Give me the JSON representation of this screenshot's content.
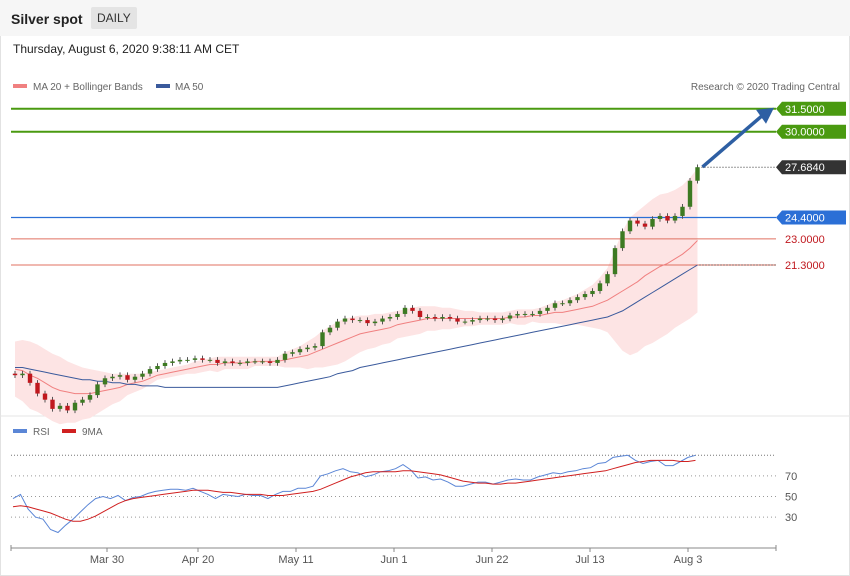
{
  "header": {
    "title": "Silver spot",
    "period": "DAILY"
  },
  "timestamp": "Thursday, August 6, 2020 9:38:11 AM CET",
  "legend": {
    "ma20": "MA 20 + Bollinger Bands",
    "ma50": "MA 50",
    "credit": "Research © 2020 Trading Central",
    "rsi": "RSI",
    "rsi_ma": "9MA"
  },
  "colors": {
    "ma20": "#f08080",
    "ma50": "#3a5a9c",
    "band_fill": "#fde4e4",
    "bull": "#3d7a22",
    "bear": "#c0181e",
    "green_level": "#4a9a10",
    "blue_level": "#2b6fd6",
    "red_level": "#e07060",
    "price_tag": "#333333",
    "rsi": "#5b86d6",
    "rsi_ma": "#d02020",
    "arrow": "#2e5fa3"
  },
  "chart_data": {
    "type": "candlestick",
    "title": "Silver spot",
    "x_ticks": [
      "Mar 30",
      "Apr 20",
      "May 11",
      "Jun 1",
      "Jun 22",
      "Jul 13",
      "Aug 3"
    ],
    "ylim": [
      11.5,
      32.4
    ],
    "levels": [
      {
        "value": 31.5,
        "label": "31.5000",
        "kind": "resistance-tag"
      },
      {
        "value": 30.0,
        "label": "30.0000",
        "kind": "resistance-tag"
      },
      {
        "value": 27.684,
        "label": "27.6840",
        "kind": "last-price"
      },
      {
        "value": 24.4,
        "label": "24.4000",
        "kind": "pivot-tag"
      },
      {
        "value": 23.0,
        "label": "23.0000",
        "kind": "support"
      },
      {
        "value": 21.3,
        "label": "21.3000",
        "kind": "support"
      }
    ],
    "arrow": {
      "from": 27.7,
      "to": 31.5
    },
    "closes": [
      14.1,
      14.2,
      13.6,
      12.9,
      12.5,
      11.9,
      12.1,
      11.8,
      12.3,
      12.5,
      12.8,
      13.5,
      13.9,
      14.0,
      14.1,
      13.8,
      14.0,
      14.2,
      14.5,
      14.7,
      14.9,
      15.0,
      15.1,
      15.1,
      15.2,
      15.1,
      15.1,
      14.9,
      15.0,
      14.9,
      14.9,
      15.0,
      15.0,
      15.0,
      14.9,
      15.1,
      15.5,
      15.6,
      15.8,
      15.9,
      16.0,
      16.9,
      17.2,
      17.6,
      17.8,
      17.7,
      17.7,
      17.5,
      17.6,
      17.8,
      17.9,
      18.1,
      18.5,
      18.3,
      17.9,
      17.9,
      17.8,
      17.9,
      17.8,
      17.6,
      17.6,
      17.7,
      17.8,
      17.8,
      17.7,
      17.8,
      18.0,
      18.1,
      18.1,
      18.1,
      18.3,
      18.5,
      18.8,
      18.8,
      19.0,
      19.2,
      19.4,
      19.6,
      20.1,
      20.7,
      22.4,
      23.5,
      24.2,
      24.0,
      23.8,
      24.3,
      24.5,
      24.2,
      24.5,
      25.1,
      26.8,
      27.684
    ],
    "ma20": [
      14.5,
      14.4,
      14.1,
      13.9,
      13.6,
      13.3,
      13.1,
      13.0,
      12.9,
      12.9,
      12.9,
      13.0,
      13.1,
      13.2,
      13.3,
      13.5,
      13.6,
      13.7,
      13.9,
      14.1,
      14.2,
      14.3,
      14.4,
      14.5,
      14.6,
      14.7,
      14.8,
      14.8,
      14.9,
      14.9,
      14.9,
      14.9,
      15.0,
      15.0,
      15.0,
      15.0,
      15.1,
      15.2,
      15.3,
      15.4,
      15.6,
      15.8,
      16.0,
      16.2,
      16.4,
      16.6,
      16.8,
      16.9,
      17.0,
      17.1,
      17.2,
      17.4,
      17.5,
      17.6,
      17.7,
      17.8,
      17.8,
      17.8,
      17.8,
      17.8,
      17.8,
      17.8,
      17.8,
      17.8,
      17.8,
      17.8,
      17.9,
      17.9,
      17.9,
      18.0,
      18.0,
      18.1,
      18.2,
      18.2,
      18.3,
      18.4,
      18.5,
      18.6,
      18.8,
      19.0,
      19.3,
      19.6,
      19.9,
      20.2,
      20.6,
      20.9,
      21.2,
      21.4,
      21.7,
      22.0,
      22.4,
      22.9
    ],
    "ma50": [
      14.6,
      14.6,
      14.5,
      14.4,
      14.3,
      14.2,
      14.1,
      14.0,
      13.9,
      13.8,
      13.8,
      13.7,
      13.7,
      13.6,
      13.6,
      13.5,
      13.5,
      13.4,
      13.4,
      13.4,
      13.3,
      13.3,
      13.3,
      13.3,
      13.3,
      13.3,
      13.3,
      13.3,
      13.3,
      13.3,
      13.3,
      13.3,
      13.3,
      13.3,
      13.3,
      13.3,
      13.4,
      13.5,
      13.6,
      13.7,
      13.8,
      13.9,
      14.0,
      14.2,
      14.3,
      14.4,
      14.6,
      14.7,
      14.8,
      14.9,
      15.0,
      15.1,
      15.2,
      15.3,
      15.4,
      15.5,
      15.6,
      15.7,
      15.8,
      15.9,
      16.0,
      16.1,
      16.2,
      16.3,
      16.4,
      16.5,
      16.6,
      16.7,
      16.8,
      16.9,
      17.0,
      17.1,
      17.2,
      17.3,
      17.4,
      17.5,
      17.6,
      17.7,
      17.8,
      17.9,
      18.1,
      18.3,
      18.6,
      18.9,
      19.2,
      19.5,
      19.8,
      20.1,
      20.4,
      20.7,
      21.0,
      21.3
    ],
    "bb_upper": [
      16.3,
      16.4,
      16.3,
      16.1,
      15.8,
      15.5,
      15.3,
      15.0,
      14.8,
      14.6,
      14.5,
      14.4,
      14.3,
      14.2,
      14.2,
      14.2,
      14.2,
      14.2,
      14.3,
      14.4,
      14.5,
      14.6,
      14.7,
      14.8,
      15.0,
      15.1,
      15.2,
      15.3,
      15.3,
      15.3,
      15.3,
      15.3,
      15.3,
      15.3,
      15.3,
      15.3,
      15.6,
      15.8,
      16.0,
      16.3,
      16.6,
      17.0,
      17.3,
      17.6,
      17.8,
      17.9,
      18.0,
      18.0,
      18.1,
      18.1,
      18.2,
      18.3,
      18.4,
      18.5,
      18.6,
      18.6,
      18.6,
      18.5,
      18.5,
      18.4,
      18.3,
      18.3,
      18.2,
      18.2,
      18.2,
      18.2,
      18.3,
      18.4,
      18.4,
      18.4,
      18.5,
      18.7,
      18.9,
      19.0,
      19.2,
      19.4,
      19.7,
      20.0,
      20.5,
      21.1,
      22.3,
      23.5,
      24.4,
      24.8,
      25.2,
      25.6,
      25.9,
      26.0,
      26.2,
      26.5,
      27.0,
      27.6
    ],
    "bb_lower": [
      12.7,
      12.4,
      11.9,
      11.7,
      11.4,
      11.1,
      10.9,
      11.0,
      11.0,
      11.2,
      11.3,
      11.6,
      11.9,
      12.2,
      12.4,
      12.8,
      13.0,
      13.2,
      13.5,
      13.8,
      13.9,
      14.0,
      14.1,
      14.2,
      14.2,
      14.3,
      14.4,
      14.3,
      14.5,
      14.5,
      14.5,
      14.5,
      14.7,
      14.7,
      14.7,
      14.7,
      14.6,
      14.6,
      14.6,
      14.5,
      14.6,
      14.6,
      14.7,
      14.8,
      15.0,
      15.3,
      15.6,
      15.8,
      15.9,
      16.1,
      16.2,
      16.5,
      16.6,
      16.7,
      16.8,
      17.0,
      17.0,
      17.1,
      17.1,
      17.2,
      17.3,
      17.3,
      17.4,
      17.4,
      17.4,
      17.4,
      17.5,
      17.4,
      17.4,
      17.6,
      17.5,
      17.5,
      17.5,
      17.4,
      17.4,
      17.4,
      17.3,
      17.2,
      17.1,
      16.9,
      16.3,
      15.7,
      15.4,
      15.6,
      16.0,
      16.2,
      16.5,
      16.8,
      17.2,
      17.5,
      17.8,
      18.2
    ],
    "rsi": {
      "ylim": [
        0,
        100
      ],
      "ticks": [
        30,
        50,
        70
      ],
      "rsi_values": [
        48,
        52,
        38,
        30,
        28,
        18,
        15,
        22,
        28,
        35,
        42,
        48,
        50,
        48,
        51,
        46,
        49,
        50,
        53,
        55,
        56,
        57,
        57,
        56,
        58,
        55,
        52,
        48,
        52,
        51,
        50,
        52,
        51,
        51,
        48,
        52,
        55,
        55,
        58,
        58,
        60,
        70,
        72,
        75,
        77,
        74,
        73,
        69,
        71,
        74,
        75,
        77,
        81,
        76,
        68,
        69,
        66,
        67,
        64,
        60,
        60,
        62,
        64,
        64,
        62,
        64,
        66,
        67,
        66,
        66,
        69,
        71,
        73,
        72,
        74,
        75,
        77,
        78,
        82,
        83,
        88,
        89,
        90,
        85,
        82,
        84,
        85,
        80,
        80,
        84,
        88,
        90
      ],
      "ma9_values": [
        40,
        41,
        40,
        38,
        36,
        34,
        31,
        28,
        26,
        26,
        28,
        31,
        35,
        39,
        43,
        46,
        48,
        49,
        50,
        51,
        52,
        53,
        54,
        55,
        56,
        56,
        56,
        55,
        54,
        54,
        53,
        52,
        52,
        52,
        51,
        51,
        51,
        52,
        53,
        54,
        55,
        57,
        60,
        63,
        66,
        69,
        71,
        73,
        74,
        74,
        74,
        74,
        75,
        75,
        74,
        73,
        72,
        71,
        69,
        67,
        65,
        64,
        63,
        63,
        62,
        62,
        63,
        63,
        64,
        65,
        66,
        67,
        68,
        69,
        70,
        71,
        72,
        73,
        74,
        75,
        77,
        79,
        81,
        83,
        84,
        85,
        85,
        85,
        85,
        84,
        84,
        85
      ]
    }
  }
}
